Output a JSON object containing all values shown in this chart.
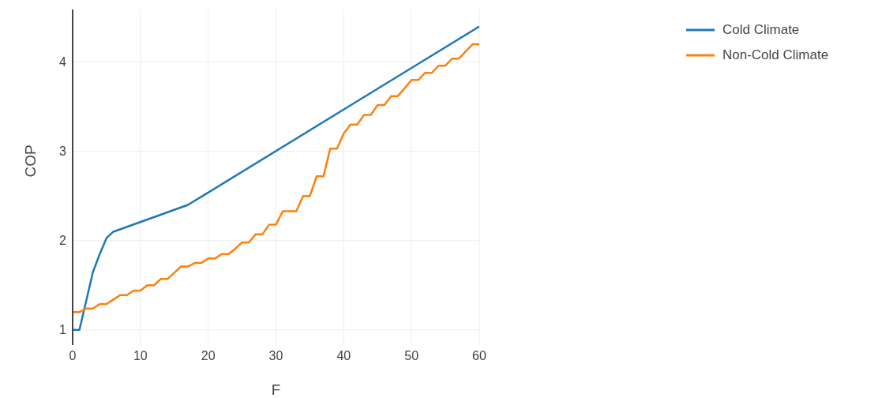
{
  "chart_data": {
    "type": "line",
    "xlabel": "F",
    "ylabel": "COP",
    "xlim": [
      0,
      60
    ],
    "xticks": [
      0,
      10,
      20,
      30,
      40,
      50,
      60
    ],
    "ylim": [
      0.83,
      4.59
    ],
    "yticks": [
      1,
      2,
      3,
      4
    ],
    "grid": true,
    "legend": "top right",
    "marker": "none",
    "line_style": "solid",
    "series": [
      {
        "name": "Cold Climate",
        "color": "#1f77b4",
        "x": [
          0,
          1,
          3,
          4,
          5,
          6,
          17,
          60
        ],
        "values": [
          1,
          1,
          1.65,
          1.85,
          2.03,
          2.1,
          2.4,
          4.4
        ]
      },
      {
        "name": "Non-Cold Climate",
        "color": "#ff7f0e",
        "x": [
          0,
          1,
          2,
          3,
          4,
          5,
          6,
          7,
          8,
          9,
          10,
          11,
          12,
          13,
          14,
          15,
          16,
          17,
          18,
          19,
          20,
          21,
          22,
          23,
          24,
          25,
          26,
          27,
          28,
          29,
          30,
          31,
          32,
          33,
          34,
          35,
          36,
          37,
          38,
          39,
          40,
          41,
          42,
          43,
          44,
          45,
          46,
          47,
          48,
          49,
          50,
          51,
          52,
          53,
          54,
          55,
          56,
          57,
          58,
          59,
          60
        ],
        "values": [
          1.2,
          1.2,
          1.24,
          1.24,
          1.29,
          1.29,
          1.34,
          1.39,
          1.39,
          1.44,
          1.44,
          1.5,
          1.5,
          1.57,
          1.57,
          1.64,
          1.71,
          1.71,
          1.75,
          1.75,
          1.8,
          1.8,
          1.85,
          1.85,
          1.91,
          1.98,
          1.98,
          2.07,
          2.07,
          2.18,
          2.18,
          2.33,
          2.33,
          2.33,
          2.5,
          2.5,
          2.72,
          2.72,
          3.03,
          3.03,
          3.2,
          3.3,
          3.3,
          3.41,
          3.41,
          3.52,
          3.52,
          3.62,
          3.62,
          3.71,
          3.8,
          3.8,
          3.88,
          3.88,
          3.96,
          3.96,
          4.04,
          4.04,
          4.12,
          4.2,
          4.2
        ]
      }
    ]
  }
}
